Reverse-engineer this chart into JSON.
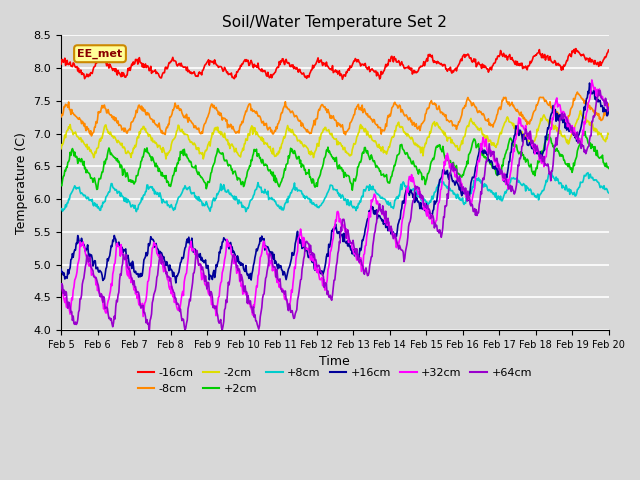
{
  "title": "Soil/Water Temperature Set 2",
  "xlabel": "Time",
  "ylabel": "Temperature (C)",
  "ylim": [
    4.0,
    8.5
  ],
  "xlim": [
    0,
    360
  ],
  "x_ticks": [
    0,
    24,
    48,
    72,
    96,
    120,
    144,
    168,
    192,
    216,
    240,
    264,
    288,
    312,
    336,
    360
  ],
  "x_tick_labels": [
    "Feb 5",
    "Feb 6",
    "Feb 7",
    "Feb 8",
    "Feb 9",
    "Feb 10",
    "Feb 11",
    "Feb 12",
    "Feb 13",
    "Feb 14",
    "Feb 15",
    "Feb 16",
    "Feb 17",
    "Feb 18",
    "Feb 19",
    "Feb 20"
  ],
  "bg_color": "#d8d8d8",
  "grid_color": "#ffffff",
  "legend_label": "EE_met",
  "legend_box_facecolor": "#ffff99",
  "legend_box_edgecolor": "#cc8800",
  "series": [
    {
      "label": "-16cm",
      "color": "#ff0000"
    },
    {
      "label": "-8cm",
      "color": "#ff8800"
    },
    {
      "label": "-2cm",
      "color": "#dddd00"
    },
    {
      "label": "+2cm",
      "color": "#00cc00"
    },
    {
      "label": "+8cm",
      "color": "#00cccc"
    },
    {
      "label": "+16cm",
      "color": "#000099"
    },
    {
      "label": "+32cm",
      "color": "#ff00ff"
    },
    {
      "label": "+64cm",
      "color": "#9900cc"
    }
  ]
}
